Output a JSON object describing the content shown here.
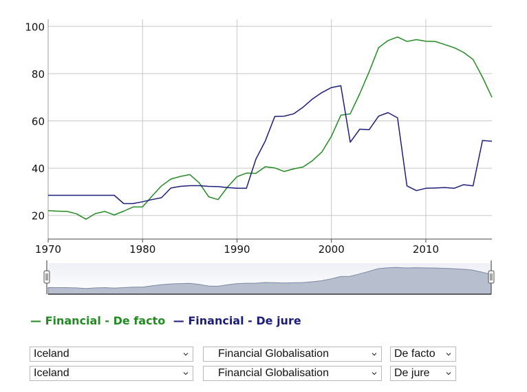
{
  "chart_data": {
    "type": "line",
    "xlim": [
      1970,
      2017
    ],
    "ylim": [
      10,
      103
    ],
    "y_ticks": [
      20,
      40,
      60,
      80,
      100
    ],
    "x_ticks": [
      1970,
      1980,
      1990,
      2000,
      2010
    ],
    "grid": true,
    "legend_position": "bottom-left",
    "series": [
      {
        "name": "Financial - De facto",
        "color": "#228b22",
        "x": [
          1970,
          1971,
          1972,
          1973,
          1974,
          1975,
          1976,
          1977,
          1978,
          1979,
          1980,
          1981,
          1982,
          1983,
          1984,
          1985,
          1986,
          1987,
          1988,
          1989,
          1990,
          1991,
          1992,
          1993,
          1994,
          1995,
          1996,
          1997,
          1998,
          1999,
          2000,
          2001,
          2002,
          2003,
          2004,
          2005,
          2006,
          2007,
          2008,
          2009,
          2010,
          2011,
          2012,
          2013,
          2014,
          2015,
          2016,
          2017
        ],
        "values": [
          22,
          21.8,
          21.7,
          20.7,
          18.4,
          20.8,
          21.7,
          20.2,
          21.8,
          23.6,
          23.6,
          28.2,
          32.5,
          35.4,
          36.5,
          37.3,
          33.8,
          27.9,
          26.7,
          32,
          36.4,
          37.9,
          37.8,
          40.6,
          40.1,
          38.6,
          39.7,
          40.5,
          43.2,
          46.9,
          53.5,
          62.4,
          63,
          71.5,
          80.8,
          91,
          94,
          95.5,
          93.6,
          94.4,
          93.7,
          93.6,
          92.3,
          91,
          89,
          86,
          78.5,
          70
        ]
      },
      {
        "name": "Financial - De jure",
        "color": "#1c1c7a",
        "x": [
          1970,
          1971,
          1972,
          1973,
          1974,
          1975,
          1976,
          1977,
          1978,
          1979,
          1980,
          1981,
          1982,
          1983,
          1984,
          1985,
          1986,
          1987,
          1988,
          1989,
          1990,
          1991,
          1992,
          1993,
          1994,
          1995,
          1996,
          1997,
          1998,
          1999,
          2000,
          2001,
          2002,
          2003,
          2004,
          2005,
          2006,
          2007,
          2008,
          2009,
          2010,
          2011,
          2012,
          2013,
          2014,
          2015,
          2016,
          2017
        ],
        "values": [
          28.5,
          28.5,
          28.5,
          28.5,
          28.5,
          28.5,
          28.5,
          28.5,
          25,
          25,
          25.8,
          26.7,
          27.5,
          31.6,
          32.3,
          32.6,
          32.6,
          32.3,
          32.2,
          31.8,
          31.5,
          31.5,
          43.8,
          51.5,
          61.9,
          62,
          63,
          65.8,
          69.3,
          72,
          74.1,
          74.9,
          51,
          56.5,
          56.3,
          62,
          63.5,
          61.3,
          32.5,
          30.5,
          31.5,
          31.6,
          31.8,
          31.5,
          33,
          32.5,
          51.7,
          51.4
        ]
      }
    ],
    "navigator_series": "Financial - De facto"
  },
  "selectors": [
    {
      "country": "Iceland",
      "index": "Financial Globalisation",
      "type": "De facto"
    },
    {
      "country": "Iceland",
      "index": "Financial Globalisation",
      "type": "De jure"
    }
  ]
}
